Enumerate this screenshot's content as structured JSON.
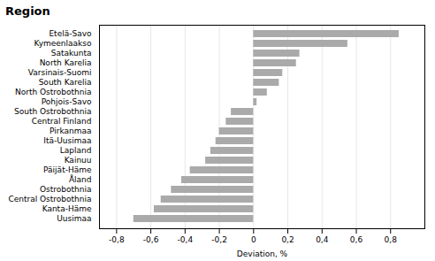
{
  "chart_data": {
    "type": "bar",
    "orientation": "horizontal",
    "title": "Region",
    "xlabel": "Deviation, %",
    "categories": [
      "Etelä-Savo",
      "Kymeenlaakso",
      "Satakunta",
      "North Karelia",
      "Varsinais-Suomi",
      "South Karelia",
      "North Ostrobothnia",
      "Pohjois-Savo",
      "South Ostrobothnia",
      "Central Finland",
      "Pirkanmaa",
      "Itä-Uusimaa",
      "Lapland",
      "Kainuu",
      "Päijät-Häme",
      "Åland",
      "Ostrobothnia",
      "Central Ostrobothnia",
      "Kanta-Häme",
      "Uusimaa"
    ],
    "values": [
      0.85,
      0.55,
      0.27,
      0.25,
      0.17,
      0.15,
      0.08,
      0.02,
      -0.13,
      -0.16,
      -0.2,
      -0.22,
      -0.25,
      -0.28,
      -0.37,
      -0.42,
      -0.48,
      -0.54,
      -0.58,
      -0.7
    ],
    "color": "#aaaaaa",
    "xlim": [
      -0.9,
      1.0
    ],
    "xticks": [
      {
        "value": -0.8,
        "label": "-0,8"
      },
      {
        "value": -0.6,
        "label": "-0,6"
      },
      {
        "value": -0.4,
        "label": "-0,4"
      },
      {
        "value": -0.2,
        "label": "-0,2"
      },
      0.0,
      {
        "value": 0.2,
        "label": "0,2"
      },
      {
        "value": 0.4,
        "label": "0,4"
      },
      {
        "value": 0.6,
        "label": "0,6"
      },
      {
        "value": 0.8,
        "label": "0,8"
      }
    ],
    "grid": true
  }
}
